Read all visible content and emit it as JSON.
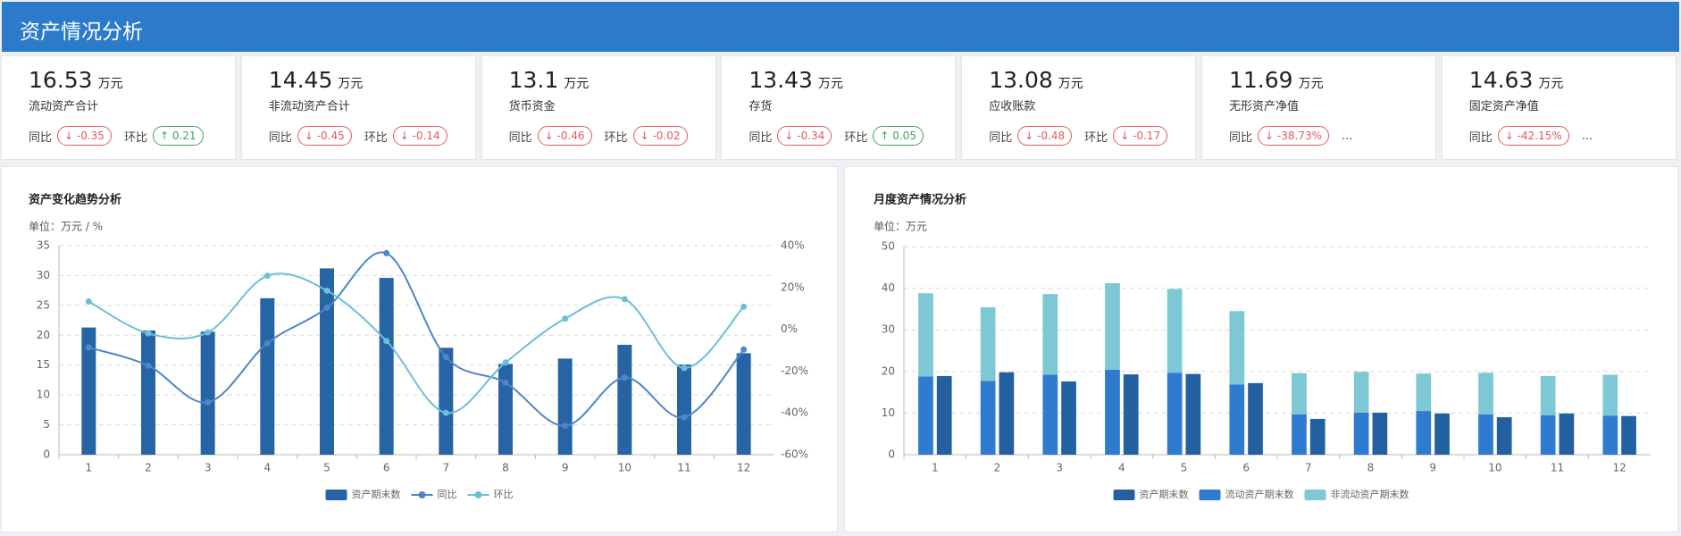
{
  "header": {
    "title": "资产情况分析"
  },
  "cards": [
    {
      "value": 16.53,
      "unit": "万元",
      "label": "流动资产合计",
      "yoy_label": "同比",
      "yoy": -0.35,
      "mom_label": "环比",
      "mom": 0.21
    },
    {
      "value": 14.45,
      "unit": "万元",
      "label": "非流动资产合计",
      "yoy_label": "同比",
      "yoy": -0.45,
      "mom_label": "环比",
      "mom": -0.14
    },
    {
      "value": 13.1,
      "unit": "万元",
      "label": "货币资金",
      "yoy_label": "同比",
      "yoy": -0.46,
      "mom_label": "环比",
      "mom": -0.02
    },
    {
      "value": 13.43,
      "unit": "万元",
      "label": "存货",
      "yoy_label": "同比",
      "yoy": -0.34,
      "mom_label": "环比",
      "mom": 0.05
    },
    {
      "value": 13.08,
      "unit": "万元",
      "label": "应收账款",
      "yoy_label": "同比",
      "yoy": -0.48,
      "mom_label": "环比",
      "mom": -0.17
    },
    {
      "value": 11.69,
      "unit": "万元",
      "label": "无形资产净值",
      "yoy_label": "同比",
      "yoy": "-38.73%",
      "more": "..."
    },
    {
      "value": 14.63,
      "unit": "万元",
      "label": "固定资产净值",
      "yoy_label": "同比",
      "yoy": "-42.15%",
      "more": "..."
    }
  ],
  "chart_data": [
    {
      "type": "bar",
      "title": "资产变化趋势分析",
      "unit_label": "单位：万元 / %",
      "categories": [
        "1",
        "2",
        "3",
        "4",
        "5",
        "6",
        "7",
        "8",
        "9",
        "10",
        "11",
        "12"
      ],
      "series": [
        {
          "name": "资产期末数",
          "type": "bar",
          "color": "#2764a6",
          "values": [
            21.3,
            20.8,
            20.6,
            26.2,
            31.2,
            29.6,
            17.9,
            15.2,
            16.1,
            18.4,
            15.1,
            17.0
          ]
        },
        {
          "name": "同比",
          "type": "line",
          "axis": "y2",
          "color": "#4f86c6",
          "values": [
            -8.7,
            -17.4,
            -34.9,
            -6.7,
            10.3,
            36.4,
            -13.3,
            -25.6,
            -46.2,
            -23.1,
            -42.1,
            -9.7
          ]
        },
        {
          "name": "环比",
          "type": "line",
          "axis": "y2",
          "color": "#6cc0d6",
          "values": [
            13.3,
            -2,
            -1.5,
            25.6,
            18.5,
            -5.6,
            -40,
            -15.9,
            5.1,
            14.4,
            -18.5,
            10.8
          ]
        }
      ],
      "ylim": [
        0,
        35
      ],
      "yticks": [
        0,
        5,
        10,
        15,
        20,
        25,
        30,
        35
      ],
      "y2lim": [
        -60,
        40
      ],
      "y2ticks": [
        {
          "value": -60,
          "label": "-60%"
        },
        {
          "value": -40,
          "label": "-40%"
        },
        {
          "value": -20,
          "label": "-20%"
        },
        {
          "value": 0,
          "label": "0%"
        },
        {
          "value": 20,
          "label": "20%"
        },
        {
          "value": 40,
          "label": "40%"
        }
      ],
      "grid": true
    },
    {
      "type": "bar",
      "title": "月度资产情况分析",
      "unit_label": "单位：万元",
      "categories": [
        "1",
        "2",
        "3",
        "4",
        "5",
        "6",
        "7",
        "8",
        "9",
        "10",
        "11",
        "12"
      ],
      "series": [
        {
          "name": "资产期末数",
          "type": "bar",
          "color": "#2260a0",
          "values": [
            18.9,
            19.8,
            17.6,
            19.3,
            19.4,
            17.2,
            8.6,
            10.1,
            9.9,
            9.0,
            9.9,
            9.3
          ]
        },
        {
          "name": "流动资产期末数",
          "type": "bar",
          "stack": true,
          "color": "#2e7bcf",
          "values": [
            18.8,
            17.7,
            19.2,
            20.4,
            19.7,
            16.9,
            9.7,
            10.1,
            10.5,
            9.7,
            9.5,
            9.4
          ]
        },
        {
          "name": "非流动资产期末数",
          "type": "bar",
          "stack": true,
          "color": "#7dc8d4",
          "values": [
            20.0,
            17.7,
            19.4,
            20.8,
            20.1,
            17.6,
            9.9,
            9.8,
            9.0,
            10.0,
            9.4,
            9.8
          ]
        }
      ],
      "ylim": [
        0,
        50
      ],
      "yticks": [
        0,
        10,
        20,
        30,
        40,
        50
      ],
      "grid": true
    }
  ]
}
